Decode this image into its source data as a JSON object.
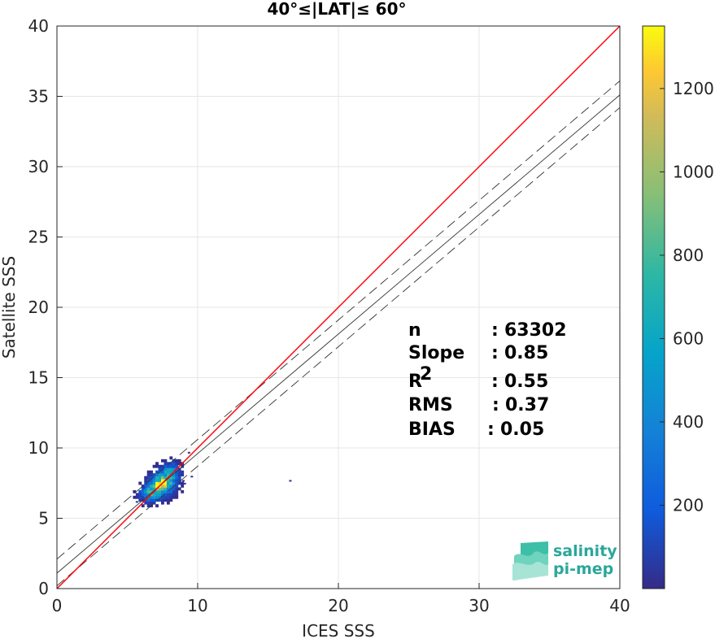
{
  "chart_data": {
    "type": "heatmap",
    "title": "40°≤|LAT|≤ 60°",
    "xlabel": "ICES SSS",
    "ylabel": "Satellite SSS",
    "xlim": [
      0,
      40
    ],
    "ylim": [
      0,
      40
    ],
    "xticks": [
      "0",
      "10",
      "20",
      "30",
      "40"
    ],
    "yticks": [
      "0",
      "5",
      "10",
      "15",
      "20",
      "25",
      "30",
      "35",
      "40"
    ],
    "grid": true,
    "colorbar": {
      "range": [
        0,
        1350
      ],
      "ticks": [
        "200",
        "400",
        "600",
        "800",
        "1000",
        "1200"
      ],
      "colormap": "parula"
    },
    "lines": {
      "identity": {
        "slope": 1,
        "intercept": 0,
        "color": "#ff0000"
      },
      "fit": {
        "slope": 0.85,
        "intercept": 1.1,
        "color": "#333333"
      },
      "fit_upper": {
        "slope": 0.85,
        "intercept": 2.1,
        "style": "dashed"
      },
      "fit_lower": {
        "slope": 0.85,
        "intercept": 0.2,
        "style": "dashed"
      }
    },
    "density_clusters": [
      {
        "x": 7.6,
        "y": 7.5,
        "sx": 0.55,
        "sy": 0.6,
        "weight": 1.0
      },
      {
        "x": 6.4,
        "y": 6.6,
        "sx": 0.5,
        "sy": 0.45,
        "weight": 0.55
      },
      {
        "x": 8.1,
        "y": 8.3,
        "sx": 0.4,
        "sy": 0.45,
        "weight": 0.5
      },
      {
        "x": 7.0,
        "y": 7.1,
        "sx": 0.5,
        "sy": 0.5,
        "weight": 0.7
      }
    ],
    "stats": [
      {
        "label": "n",
        "sep": ":",
        "value": "63302"
      },
      {
        "label": "Slope",
        "sep": ":",
        "value": "0.85"
      },
      {
        "label": "R",
        "sup": "2",
        "sep": ":",
        "value": "0.55"
      },
      {
        "label": "RMS",
        "sep": ":",
        "value": "0.37"
      },
      {
        "label": "BIAS",
        "sep": ":",
        "value": "0.05"
      }
    ]
  },
  "logo": {
    "line1": "salinity",
    "line2": "pi-mep"
  }
}
